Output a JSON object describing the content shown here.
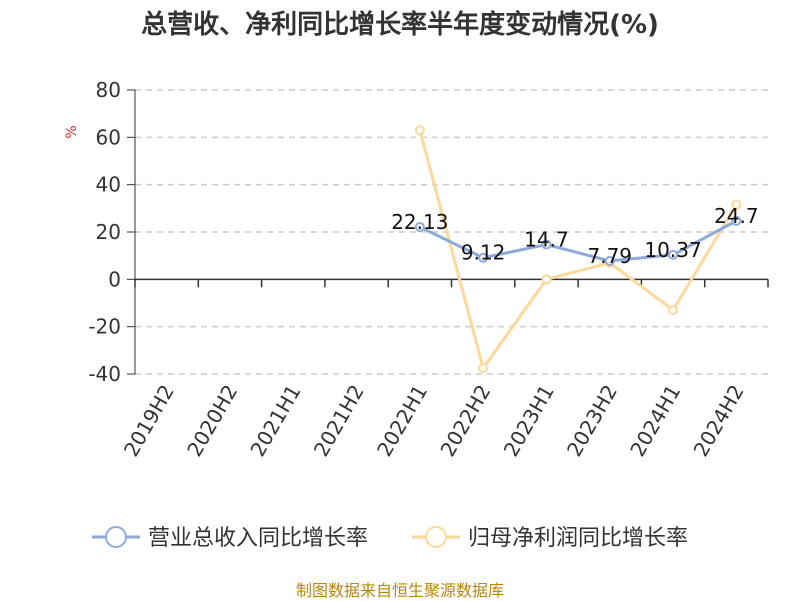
{
  "chart_data": {
    "type": "line",
    "title": "总营收、净利同比增长率半年度变动情况(%)",
    "ylabel": "%",
    "categories": [
      "2019H2",
      "2020H2",
      "2021H1",
      "2021H2",
      "2022H1",
      "2022H2",
      "2023H1",
      "2023H2",
      "2024H1",
      "2024H2"
    ],
    "ylim": [
      -40,
      80
    ],
    "yticks": [
      -40,
      -20,
      0,
      20,
      40,
      60,
      80
    ],
    "grid": true,
    "legend_position": "bottom",
    "series": [
      {
        "name": "营业总收入同比增长率",
        "color": "#8eaadb",
        "values": [
          null,
          null,
          null,
          null,
          22.13,
          9.12,
          14.7,
          7.79,
          10.37,
          24.7
        ],
        "labels": [
          null,
          null,
          null,
          null,
          "22.13",
          "9.12",
          "14.7",
          "7.79",
          "10.37",
          "24.7"
        ]
      },
      {
        "name": "归母净利润同比增长率",
        "color": "#fcd89a",
        "values": [
          null,
          null,
          null,
          null,
          63.0,
          -37.5,
          0.0,
          7.0,
          -13.0,
          31.5
        ]
      }
    ]
  },
  "footer": "制图数据来自恒生聚源数据库"
}
